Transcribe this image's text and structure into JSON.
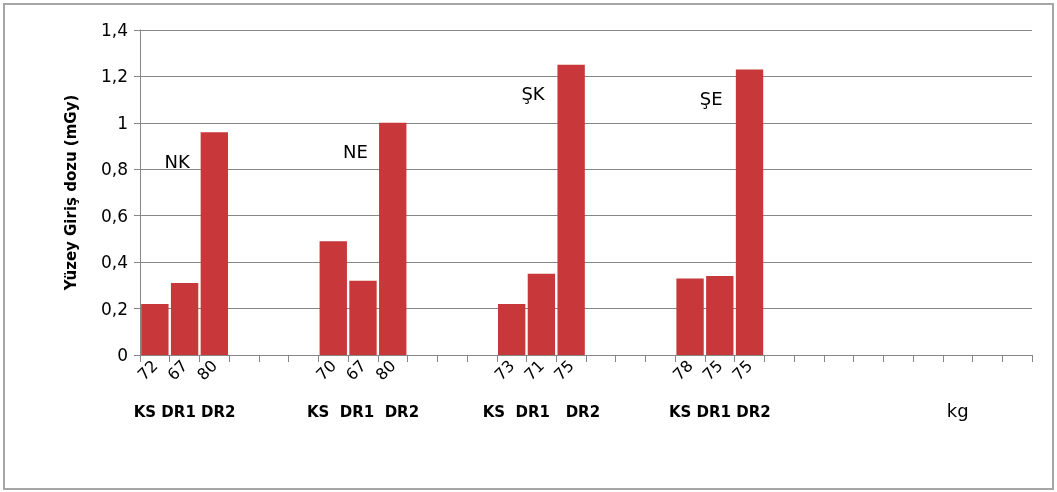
{
  "chart_data": {
    "type": "bar",
    "ylabel": "Yüzey Giriş dozu (mGy)",
    "xlabel": "kg",
    "categories": [
      "72",
      "67",
      "80",
      null,
      null,
      null,
      "70",
      "67",
      "80",
      null,
      null,
      null,
      "73",
      "71",
      "75",
      null,
      null,
      null,
      "78",
      "75",
      "75",
      null,
      null,
      null,
      null,
      null,
      null,
      null,
      null,
      null
    ],
    "values": [
      0.22,
      0.31,
      0.96,
      null,
      null,
      null,
      0.49,
      0.32,
      1.0,
      null,
      null,
      null,
      0.22,
      0.35,
      1.25,
      null,
      null,
      null,
      0.33,
      0.34,
      1.23,
      null,
      null,
      null,
      null,
      null,
      null,
      null,
      null,
      null
    ],
    "color": "#c8373a",
    "ylim": [
      0,
      1.4
    ],
    "yticks": [
      {
        "value": 0,
        "label": "0"
      },
      {
        "value": 0.2,
        "label": "0,2"
      },
      {
        "value": 0.4,
        "label": "0,4"
      },
      {
        "value": 0.6,
        "label": "0,6"
      },
      {
        "value": 0.8,
        "label": "0,8"
      },
      {
        "value": 1,
        "label": "1"
      },
      {
        "value": 1.2,
        "label": "1,2"
      },
      {
        "value": 1.4,
        "label": "1,4"
      }
    ],
    "grid": "y",
    "annotations": [
      "NK",
      "NE",
      "ŞK",
      "ŞE",
      "KS DR1 DR2",
      "KS  DR1  DR2",
      "KS  DR1   DR2",
      "KS DR1 DR2"
    ]
  }
}
